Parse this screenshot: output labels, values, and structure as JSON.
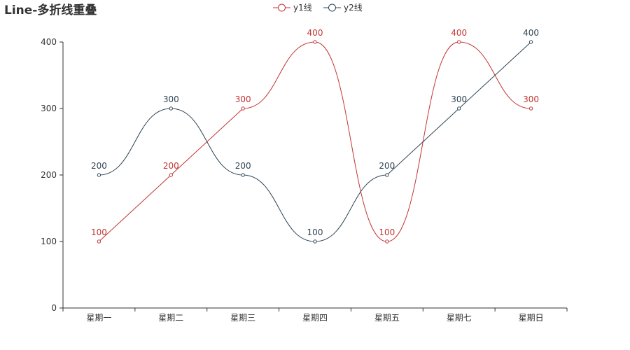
{
  "chart_data": {
    "type": "line",
    "title": "Line-多折线重叠",
    "categories": [
      "星期一",
      "星期二",
      "星期三",
      "星期四",
      "星期五",
      "星期七",
      "星期日"
    ],
    "series": [
      {
        "name": "y1线",
        "values": [
          100,
          200,
          300,
          400,
          100,
          400,
          300
        ],
        "color": "#c23531",
        "smooth": [
          false,
          false,
          true,
          true,
          true,
          true
        ]
      },
      {
        "name": "y2线",
        "values": [
          200,
          300,
          200,
          100,
          200,
          300,
          400
        ],
        "color": "#2f4554",
        "smooth": [
          true,
          true,
          true,
          true,
          false,
          false
        ]
      }
    ],
    "ylim": [
      0,
      400
    ],
    "yticks": [
      0,
      100,
      200,
      300,
      400
    ],
    "xlabel": "",
    "ylabel": "",
    "legend_position": "top-center",
    "grid": false
  }
}
